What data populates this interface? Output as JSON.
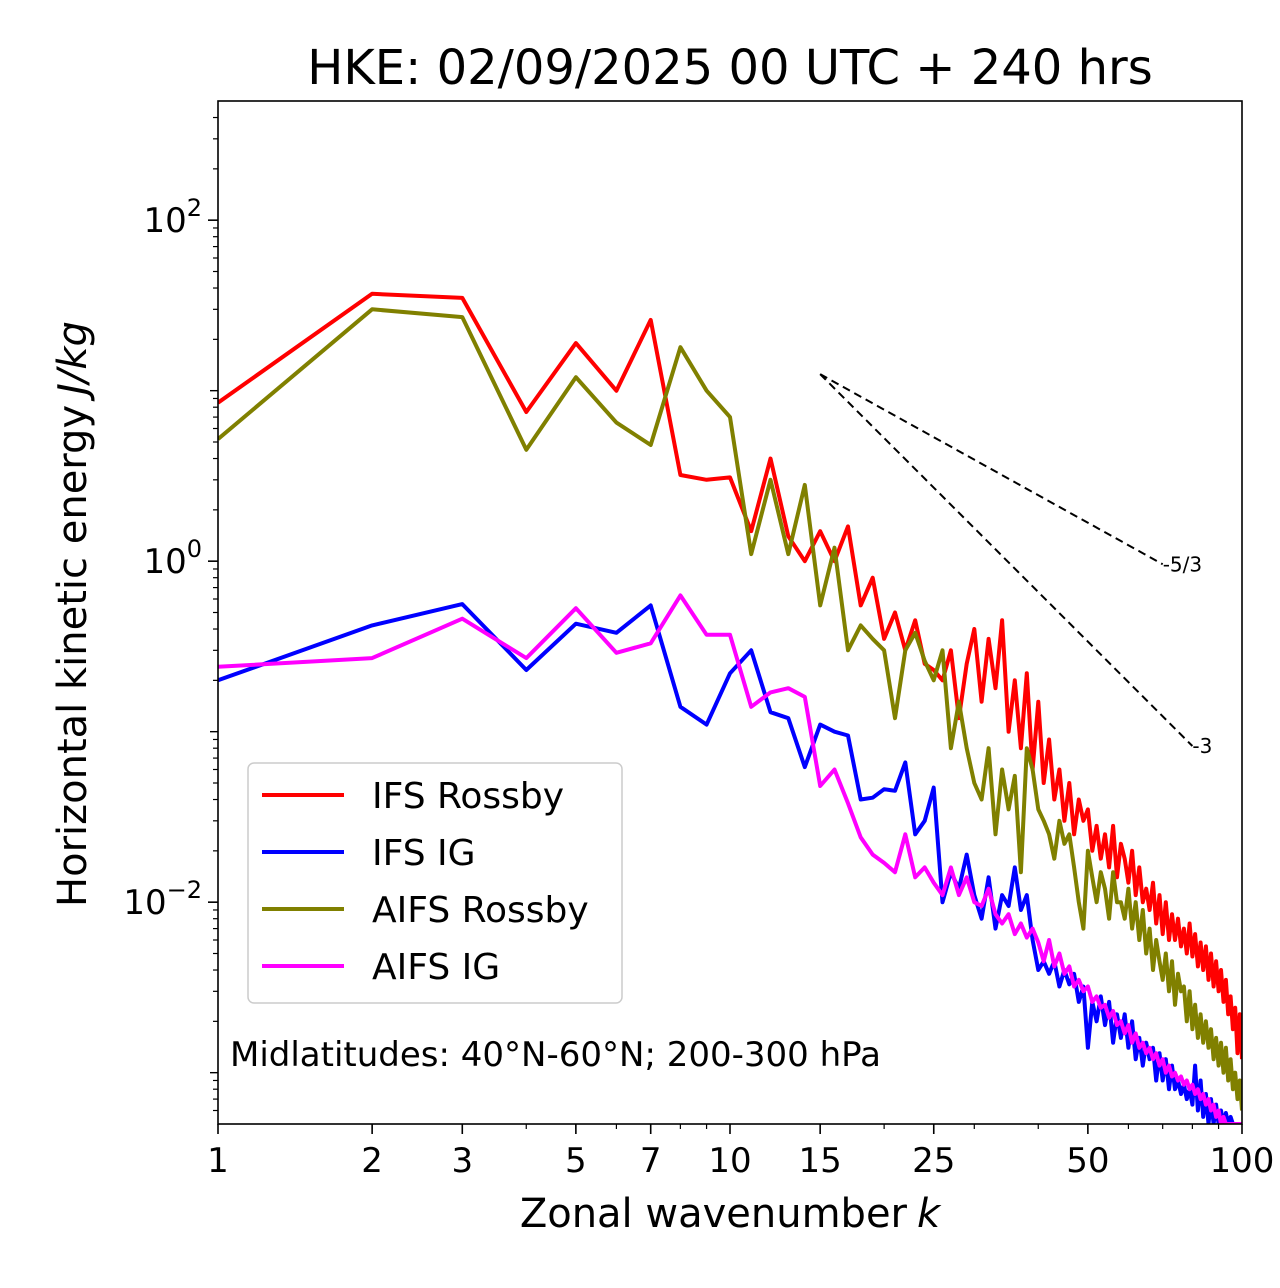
{
  "chart_data": {
    "type": "line",
    "title": "HKE: 02/09/2025 00 UTC + 240 hrs",
    "xlabel": "Zonal wavenumber",
    "xlabel_var": "k",
    "ylabel": "Horizontal kinetic energy",
    "ylabel_units": "J/kg",
    "xscale": "log",
    "yscale": "log",
    "xlim": [
      1,
      100
    ],
    "ylim": [
      0.0005,
      500
    ],
    "x_ticks": [
      {
        "value": 1,
        "label": "1"
      },
      {
        "value": 2,
        "label": "2"
      },
      {
        "value": 3,
        "label": "3"
      },
      {
        "value": 5,
        "label": "5"
      },
      {
        "value": 7,
        "label": "7"
      },
      {
        "value": 10,
        "label": "10"
      },
      {
        "value": 15,
        "label": "15"
      },
      {
        "value": 25,
        "label": "25"
      },
      {
        "value": 50,
        "label": "50"
      },
      {
        "value": 100,
        "label": "100"
      }
    ],
    "y_ticks": [
      {
        "value": 100,
        "base": "10",
        "exp": "2"
      },
      {
        "value": 1,
        "base": "10",
        "exp": "0"
      },
      {
        "value": 0.01,
        "base": "10",
        "exp": "−2"
      }
    ],
    "annotation": "Midlatitudes: 40°N-60°N; 200-300 hPa",
    "legend_position": "lower-left",
    "reference_lines": [
      {
        "label": "-5/3",
        "slope": -1.6667,
        "k_start": 15,
        "k_end": 70,
        "e_start": 12.5
      },
      {
        "label": "-3",
        "slope": -3,
        "k_start": 15,
        "k_end": 80,
        "e_start": 12.5
      }
    ],
    "x": [
      1,
      2,
      3,
      4,
      5,
      6,
      7,
      8,
      9,
      10,
      11,
      12,
      13,
      14,
      15,
      16,
      17,
      18,
      19,
      20,
      21,
      22,
      23,
      24,
      25,
      26,
      27,
      28,
      29,
      30,
      31,
      32,
      33,
      34,
      35,
      36,
      37,
      38,
      39,
      40,
      41,
      42,
      43,
      44,
      45,
      46,
      47,
      48,
      49,
      50,
      51,
      52,
      53,
      54,
      55,
      56,
      57,
      58,
      59,
      60,
      61,
      62,
      63,
      64,
      65,
      66,
      67,
      68,
      69,
      70,
      71,
      72,
      73,
      74,
      75,
      76,
      77,
      78,
      79,
      80,
      81,
      82,
      83,
      84,
      85,
      86,
      87,
      88,
      89,
      90,
      91,
      92,
      93,
      94,
      95,
      96,
      97,
      98,
      99,
      100
    ],
    "series": [
      {
        "name": "IFS Rossby",
        "color": "#ff0000",
        "values": [
          8.5,
          37,
          35,
          7.5,
          19,
          10,
          26,
          3.2,
          3.0,
          3.1,
          1.5,
          4,
          1.4,
          1.0,
          1.5,
          1.0,
          1.6,
          0.55,
          0.8,
          0.35,
          0.5,
          0.3,
          0.45,
          0.25,
          0.23,
          0.2,
          0.3,
          0.12,
          0.25,
          0.4,
          0.15,
          0.35,
          0.18,
          0.45,
          0.1,
          0.2,
          0.08,
          0.22,
          0.06,
          0.15,
          0.05,
          0.09,
          0.04,
          0.06,
          0.03,
          0.05,
          0.025,
          0.04,
          0.03,
          0.035,
          0.02,
          0.028,
          0.018,
          0.025,
          0.016,
          0.028,
          0.014,
          0.022,
          0.018,
          0.013,
          0.02,
          0.011,
          0.016,
          0.01,
          0.012,
          0.009,
          0.013,
          0.0075,
          0.011,
          0.0065,
          0.01,
          0.006,
          0.0085,
          0.006,
          0.008,
          0.0055,
          0.007,
          0.005,
          0.0075,
          0.0048,
          0.0065,
          0.0042,
          0.0058,
          0.004,
          0.0055,
          0.0035,
          0.005,
          0.0032,
          0.0045,
          0.003,
          0.004,
          0.0026,
          0.0035,
          0.0022,
          0.0028,
          0.0018,
          0.0024,
          0.0013,
          0.0022,
          0.0012
        ]
      },
      {
        "name": "IFS IG",
        "color": "#0000ff",
        "values": [
          0.2,
          0.42,
          0.56,
          0.23,
          0.43,
          0.38,
          0.55,
          0.14,
          0.11,
          0.22,
          0.3,
          0.13,
          0.12,
          0.062,
          0.11,
          0.1,
          0.095,
          0.04,
          0.041,
          0.046,
          0.045,
          0.066,
          0.025,
          0.03,
          0.047,
          0.01,
          0.015,
          0.012,
          0.019,
          0.011,
          0.008,
          0.014,
          0.007,
          0.011,
          0.0095,
          0.016,
          0.009,
          0.011,
          0.006,
          0.004,
          0.0045,
          0.0038,
          0.0045,
          0.0032,
          0.004,
          0.0033,
          0.0038,
          0.0026,
          0.0032,
          0.0014,
          0.0026,
          0.002,
          0.0028,
          0.0019,
          0.0026,
          0.0015,
          0.0022,
          0.0016,
          0.0022,
          0.0014,
          0.002,
          0.0012,
          0.0016,
          0.0011,
          0.0015,
          0.0012,
          0.0014,
          0.0009,
          0.0013,
          0.0009,
          0.0012,
          0.0008,
          0.0011,
          0.0008,
          0.0009,
          0.00075,
          0.00085,
          0.0007,
          0.0008,
          0.00065,
          0.0011,
          0.0006,
          0.0009,
          0.00055,
          0.00075,
          0.0005,
          0.0007,
          0.0005,
          0.00065,
          0.0005,
          0.0006,
          0.0005,
          0.00058,
          0.0005,
          0.00055,
          0.0005,
          0.0005,
          0.0005,
          0.0005,
          0.0005
        ]
      },
      {
        "name": "AIFS Rossby",
        "color": "#808000",
        "values": [
          5.2,
          30,
          27,
          4.5,
          12,
          6.5,
          4.8,
          18,
          10,
          7,
          1.1,
          3,
          1.1,
          2.8,
          0.55,
          1.2,
          0.3,
          0.42,
          0.35,
          0.3,
          0.12,
          0.3,
          0.38,
          0.26,
          0.2,
          0.3,
          0.08,
          0.15,
          0.08,
          0.05,
          0.04,
          0.08,
          0.025,
          0.06,
          0.035,
          0.055,
          0.015,
          0.08,
          0.06,
          0.035,
          0.03,
          0.025,
          0.018,
          0.03,
          0.022,
          0.025,
          0.016,
          0.01,
          0.007,
          0.02,
          0.014,
          0.01,
          0.015,
          0.012,
          0.008,
          0.015,
          0.01,
          0.01,
          0.008,
          0.012,
          0.007,
          0.01,
          0.006,
          0.009,
          0.005,
          0.007,
          0.004,
          0.006,
          0.0045,
          0.0035,
          0.005,
          0.003,
          0.0045,
          0.0025,
          0.0038,
          0.003,
          0.0032,
          0.002,
          0.003,
          0.0018,
          0.0025,
          0.0016,
          0.0022,
          0.0015,
          0.002,
          0.0014,
          0.0018,
          0.0012,
          0.0016,
          0.0011,
          0.0015,
          0.001,
          0.0014,
          0.0009,
          0.0012,
          0.0008,
          0.001,
          0.0007,
          0.0009,
          0.0006
        ]
      },
      {
        "name": "AIFS IG",
        "color": "#ff00ff",
        "values": [
          0.24,
          0.27,
          0.46,
          0.27,
          0.53,
          0.29,
          0.33,
          0.63,
          0.37,
          0.37,
          0.14,
          0.17,
          0.18,
          0.16,
          0.048,
          0.06,
          0.038,
          0.024,
          0.019,
          0.017,
          0.015,
          0.025,
          0.014,
          0.016,
          0.013,
          0.011,
          0.016,
          0.011,
          0.014,
          0.01,
          0.0095,
          0.012,
          0.0085,
          0.0075,
          0.0085,
          0.0065,
          0.0075,
          0.0062,
          0.007,
          0.0058,
          0.0045,
          0.006,
          0.0042,
          0.005,
          0.0038,
          0.0042,
          0.0032,
          0.0035,
          0.003,
          0.0032,
          0.0026,
          0.0028,
          0.0024,
          0.0025,
          0.0021,
          0.0023,
          0.0019,
          0.002,
          0.0017,
          0.0019,
          0.0015,
          0.0017,
          0.0014,
          0.0015,
          0.0013,
          0.0014,
          0.0012,
          0.0013,
          0.0011,
          0.0012,
          0.001,
          0.0011,
          0.00095,
          0.001,
          0.0009,
          0.00095,
          0.00085,
          0.0009,
          0.0008,
          0.00085,
          0.00075,
          0.0008,
          0.0007,
          0.00075,
          0.00065,
          0.0007,
          0.0006,
          0.00065,
          0.00055,
          0.0006,
          0.0005,
          0.00055,
          0.0005,
          0.0005,
          0.0005,
          0.0005,
          0.0005,
          0.0005,
          0.0005,
          0.0005
        ]
      }
    ]
  }
}
